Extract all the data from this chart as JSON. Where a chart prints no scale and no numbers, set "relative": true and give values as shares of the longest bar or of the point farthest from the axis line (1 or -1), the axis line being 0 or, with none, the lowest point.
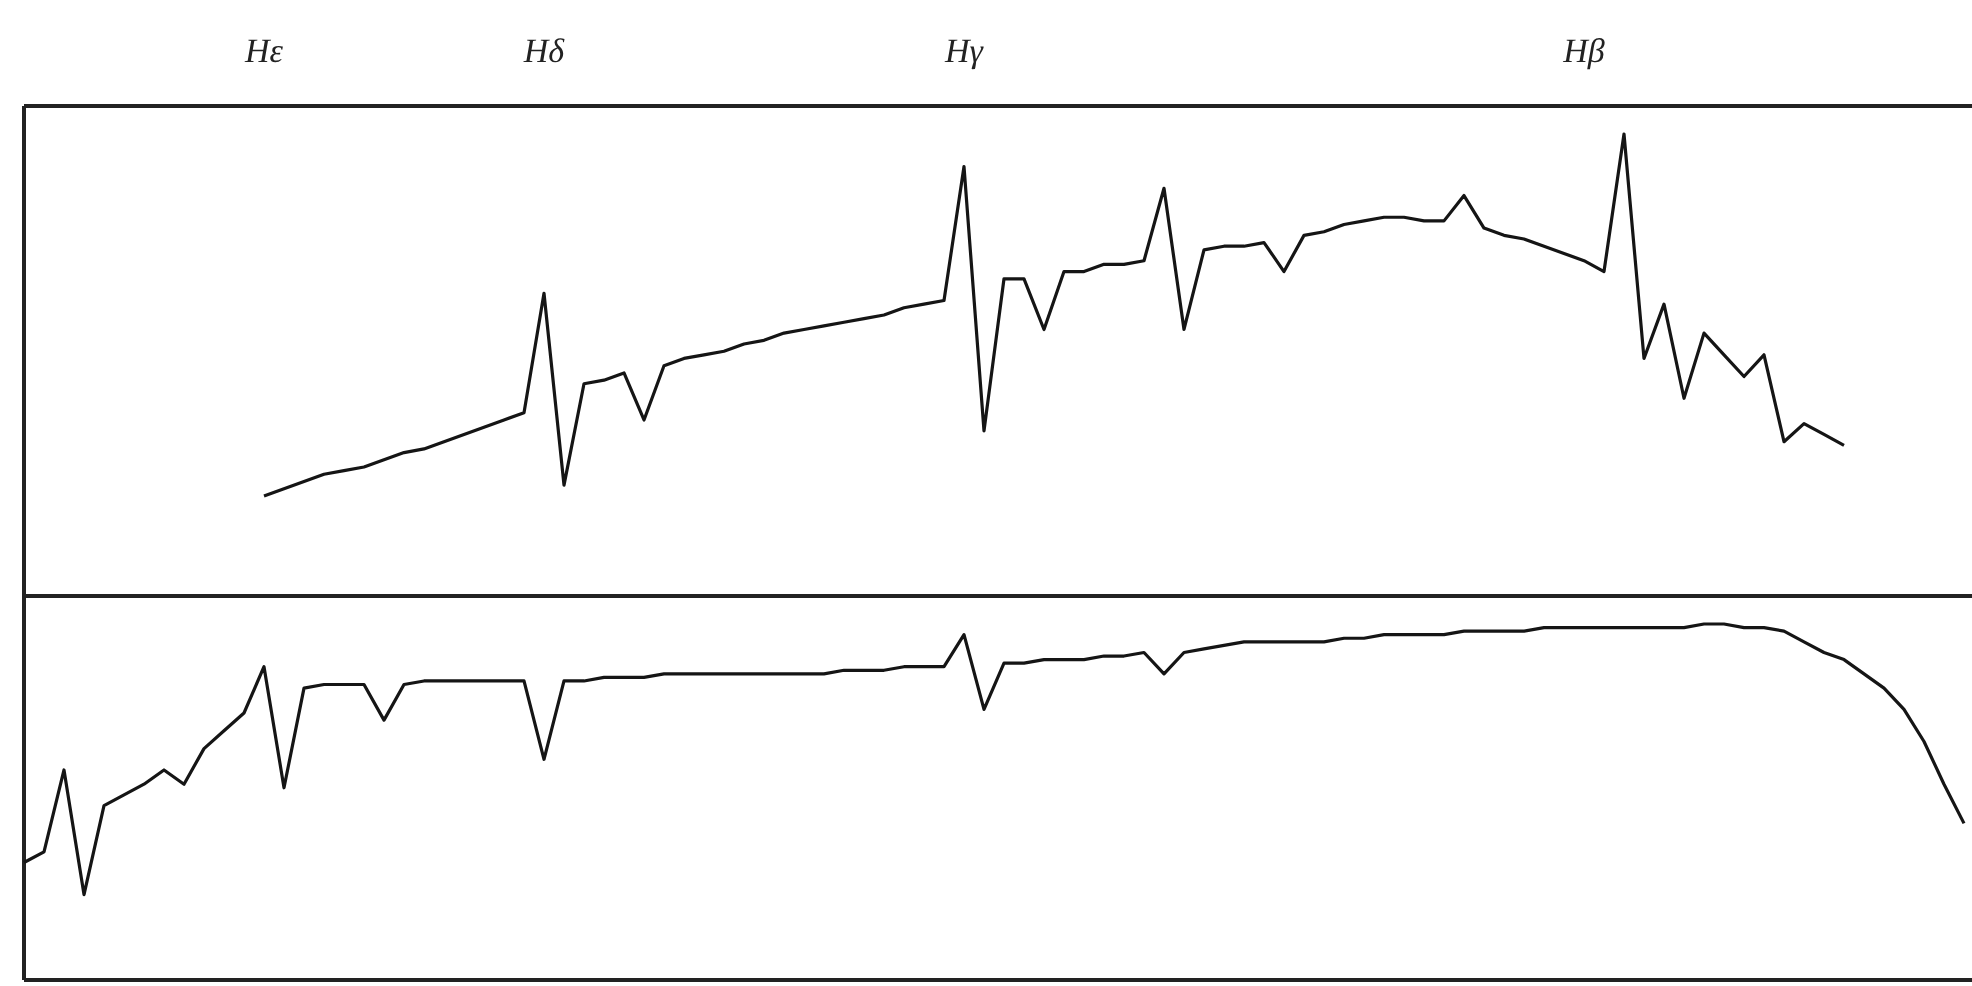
{
  "chart_data": [
    {
      "type": "line",
      "relative": true,
      "color": "#151515",
      "categories": [
        null,
        null,
        null,
        null,
        null,
        null,
        null,
        null,
        null,
        null,
        null,
        null,
        "Hε",
        null,
        null,
        null,
        null,
        null,
        null,
        null,
        null,
        null,
        null,
        null,
        null,
        null,
        "Hδ",
        null,
        null,
        null,
        null,
        null,
        null,
        null,
        null,
        null,
        null,
        null,
        null,
        null,
        null,
        null,
        null,
        null,
        null,
        null,
        null,
        "Hγ",
        null,
        null,
        null,
        null,
        null,
        null,
        null,
        null,
        null,
        null,
        null,
        null,
        null,
        null,
        null,
        null,
        null,
        null,
        null,
        null,
        null,
        null,
        null,
        null,
        null,
        null,
        null,
        null,
        null,
        null,
        "Hβ",
        null,
        null,
        null,
        null,
        null,
        null,
        null,
        null,
        null,
        null,
        null,
        null,
        null,
        null,
        null,
        null,
        null,
        null,
        null
      ],
      "values": [
        null,
        null,
        null,
        null,
        null,
        null,
        null,
        null,
        null,
        null,
        null,
        null,
        0,
        0.02,
        0.04,
        0.06,
        0.07,
        0.08,
        0.1,
        0.12,
        0.13,
        0.15,
        0.17,
        0.19,
        0.21,
        0.23,
        0.56,
        0.03,
        0.31,
        0.32,
        0.34,
        0.21,
        0.36,
        0.38,
        0.39,
        0.4,
        0.42,
        0.43,
        0.45,
        0.46,
        0.47,
        0.48,
        0.49,
        0.5,
        0.52,
        0.53,
        0.54,
        0.91,
        0.18,
        0.6,
        0.6,
        0.46,
        0.62,
        0.62,
        0.64,
        0.64,
        0.65,
        0.85,
        0.46,
        0.68,
        0.69,
        0.69,
        0.7,
        0.62,
        0.72,
        0.73,
        0.75,
        0.76,
        0.77,
        0.77,
        0.76,
        0.76,
        0.83,
        0.74,
        0.72,
        0.71,
        0.69,
        0.67,
        0.65,
        0.62,
        1,
        0.38,
        0.53,
        0.27,
        0.45,
        0.39,
        0.33,
        0.39,
        0.15,
        0.2,
        0.17,
        0.14,
        null,
        null,
        null,
        null,
        null,
        null
      ]
    },
    {
      "type": "line",
      "relative": true,
      "color": "#151515",
      "categories": [
        null,
        null,
        null,
        null,
        null,
        null,
        null,
        null,
        null,
        null,
        null,
        null,
        null,
        null,
        null,
        null,
        null,
        null,
        null,
        null,
        null,
        null,
        null,
        null,
        null,
        null,
        null,
        null,
        null,
        null,
        null,
        null,
        null,
        null,
        null,
        null,
        null,
        null,
        null,
        null,
        null,
        null,
        null,
        null,
        null,
        null,
        null,
        null,
        null,
        null,
        null,
        null,
        null,
        null,
        null,
        null,
        null,
        null,
        null,
        null,
        null,
        null,
        null,
        null,
        null,
        null,
        null,
        null,
        null,
        null,
        null,
        null,
        null,
        null,
        null,
        null,
        null,
        null,
        null,
        null,
        null,
        null,
        null,
        null,
        null,
        null,
        null,
        null,
        null,
        null,
        null,
        null,
        null,
        null,
        null,
        null,
        null,
        null
      ],
      "values": [
        0.33,
        0.36,
        0.59,
        0.24,
        0.49,
        0.52,
        0.55,
        0.59,
        0.55,
        0.65,
        0.7,
        0.75,
        0.88,
        0.54,
        0.82,
        0.83,
        0.83,
        0.83,
        0.73,
        0.83,
        0.84,
        0.84,
        0.84,
        0.84,
        0.84,
        0.84,
        0.62,
        0.84,
        0.84,
        0.85,
        0.85,
        0.85,
        0.86,
        0.86,
        0.86,
        0.86,
        0.86,
        0.86,
        0.86,
        0.86,
        0.86,
        0.87,
        0.87,
        0.87,
        0.88,
        0.88,
        0.88,
        0.97,
        0.76,
        0.89,
        0.89,
        0.9,
        0.9,
        0.9,
        0.91,
        0.91,
        0.92,
        0.86,
        0.92,
        0.93,
        0.94,
        0.95,
        0.95,
        0.95,
        0.95,
        0.95,
        0.96,
        0.96,
        0.97,
        0.97,
        0.97,
        0.97,
        0.98,
        0.98,
        0.98,
        0.98,
        0.99,
        0.99,
        0.99,
        0.99,
        0.99,
        0.99,
        0.99,
        0.99,
        1,
        1,
        0.99,
        0.99,
        0.98,
        0.95,
        0.92,
        0.9,
        0.86,
        0.82,
        0.76,
        0.67,
        0.55,
        0.44
      ]
    }
  ]
}
